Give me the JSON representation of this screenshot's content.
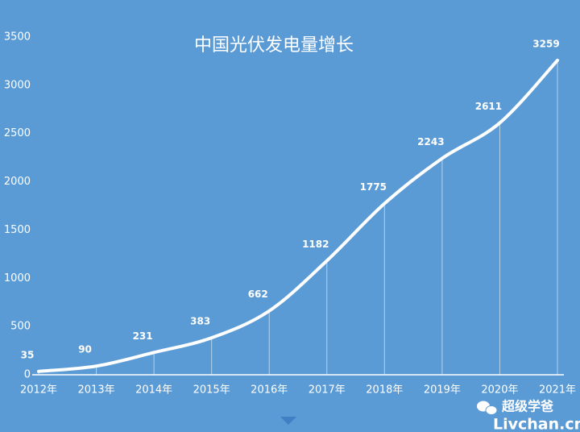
{
  "chart_data": {
    "type": "line",
    "title": "中国光伏发电量增长",
    "categories": [
      "2012年",
      "2013年",
      "2014年",
      "2015年",
      "2016年",
      "2017年",
      "2018年",
      "2019年",
      "2020年",
      "2021年"
    ],
    "values": [
      35,
      90,
      231,
      383,
      662,
      1182,
      1775,
      2243,
      2611,
      3259
    ],
    "color": "#ffffff",
    "ylim": [
      0,
      3500
    ],
    "yticks": [
      0,
      500,
      1000,
      1500,
      2000,
      2500,
      3000,
      3500
    ],
    "smooth": true,
    "drop_lines": true,
    "annotations": [
      "超级学爸",
      "Livchan.cn"
    ]
  }
}
